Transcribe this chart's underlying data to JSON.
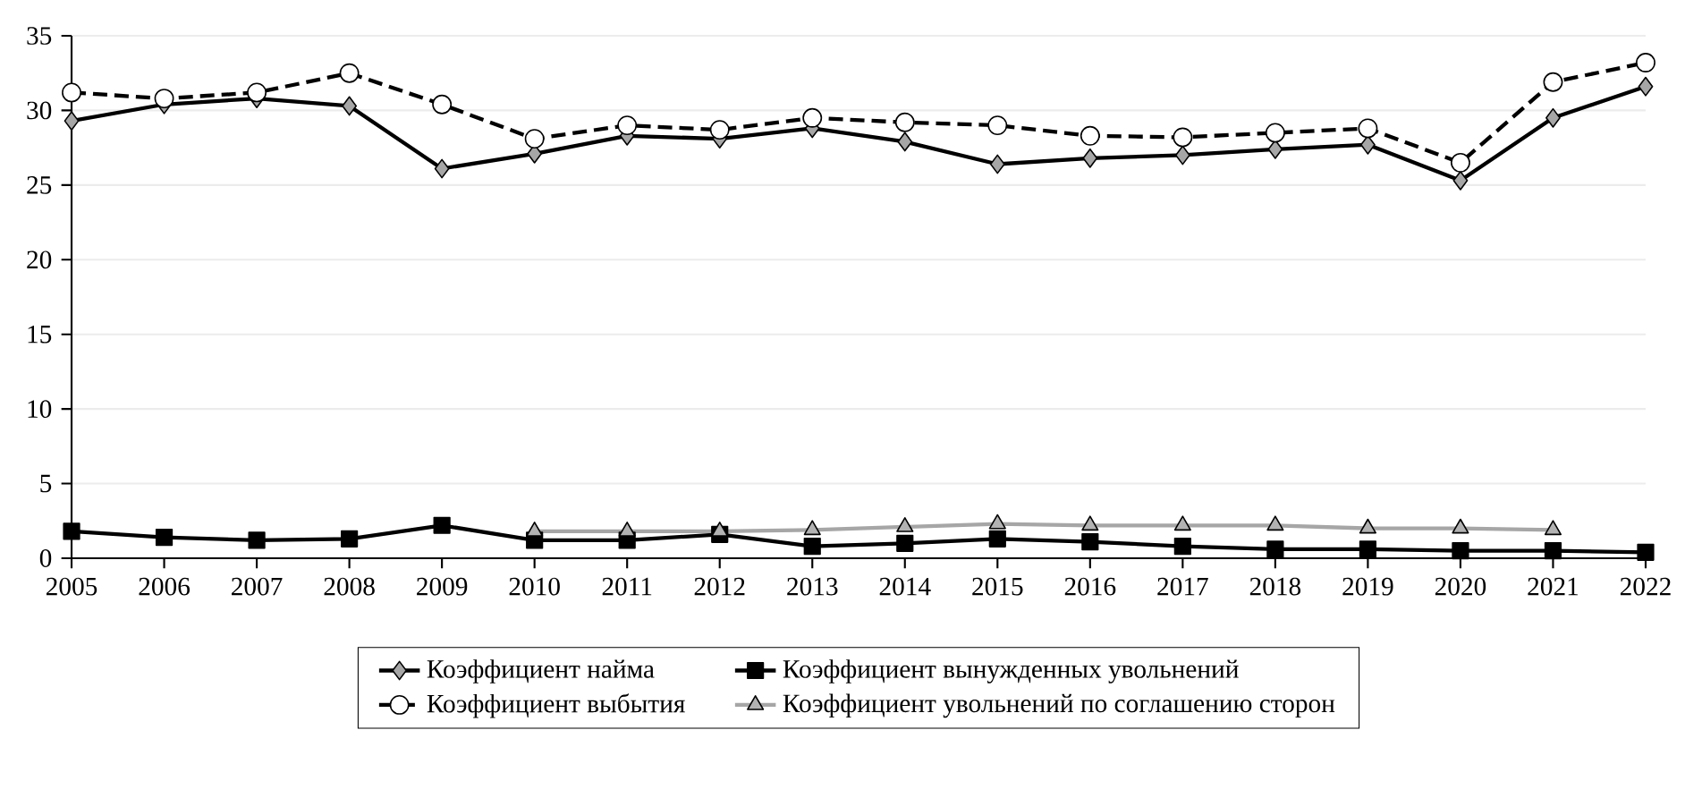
{
  "chart_data": {
    "type": "line",
    "categories": [
      "2005",
      "2006",
      "2007",
      "2008",
      "2009",
      "2010",
      "2011",
      "2012",
      "2013",
      "2014",
      "2015",
      "2016",
      "2017",
      "2018",
      "2019",
      "2020",
      "2021",
      "2022"
    ],
    "series": [
      {
        "name": "Коэффициент найма",
        "color": "#000000",
        "marker": "diamond",
        "line_style": "solid",
        "values": [
          29.3,
          30.4,
          30.8,
          30.3,
          26.1,
          27.1,
          28.3,
          28.1,
          28.8,
          27.9,
          26.4,
          26.8,
          27.0,
          27.4,
          27.7,
          25.3,
          29.5,
          31.6
        ]
      },
      {
        "name": "Коэффициент вынужденных увольнений",
        "color": "#000000",
        "marker": "square",
        "line_style": "solid",
        "values": [
          1.8,
          1.4,
          1.2,
          1.3,
          2.2,
          1.2,
          1.2,
          1.6,
          0.8,
          1.0,
          1.3,
          1.1,
          0.8,
          0.6,
          0.6,
          0.5,
          0.5,
          0.4
        ]
      },
      {
        "name": "Коэффициент выбытия",
        "color": "#000000",
        "marker": "circle",
        "line_style": "dashed",
        "values": [
          31.2,
          30.8,
          31.2,
          32.5,
          30.4,
          28.1,
          29.0,
          28.7,
          29.5,
          29.2,
          29.0,
          28.3,
          28.2,
          28.5,
          28.8,
          26.5,
          31.9,
          33.2
        ]
      },
      {
        "name": "Коэффициент увольнений по соглашению сторон",
        "color": "#a6a6a6",
        "marker": "triangle",
        "line_style": "solid",
        "values": [
          null,
          null,
          null,
          null,
          null,
          1.8,
          1.8,
          1.8,
          1.9,
          2.1,
          2.3,
          2.2,
          2.2,
          2.2,
          2.0,
          2.0,
          1.9,
          null
        ]
      }
    ],
    "ylim": [
      0,
      35
    ],
    "yticks": [
      0,
      5,
      10,
      15,
      20,
      25,
      30,
      35
    ],
    "grid": "y",
    "legend": "bottom"
  }
}
